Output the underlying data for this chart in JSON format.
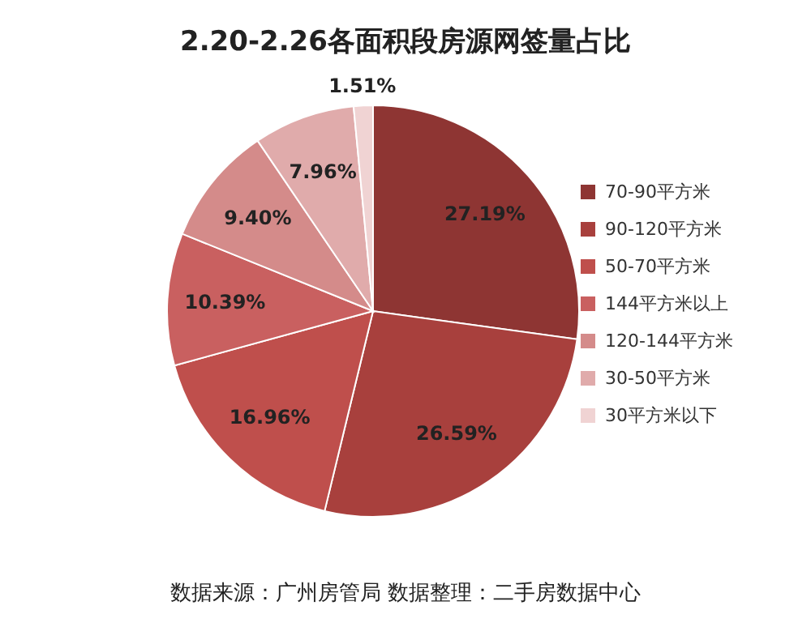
{
  "chart_data": {
    "type": "pie",
    "title": "2.20-2.26各面积段房源网签量占比",
    "categories": [
      "70-90平方米",
      "90-120平方米",
      "50-70平方米",
      "144平方米以上",
      "120-144平方米",
      "30-50平方米",
      "30平方米以下"
    ],
    "values": [
      27.19,
      26.59,
      16.96,
      10.39,
      9.4,
      7.96,
      1.51
    ],
    "value_labels": [
      "27.19%",
      "26.59%",
      "16.96%",
      "10.39%",
      "9.40%",
      "7.96%",
      "1.51%"
    ],
    "colors": [
      "#8e3533",
      "#a8403d",
      "#bf4f4c",
      "#c96060",
      "#d48b8a",
      "#e0abab",
      "#f0d3d3"
    ],
    "legend": "right",
    "annotations": [
      "数据来源：广州房管局 数据整理：二手房数据中心"
    ]
  }
}
